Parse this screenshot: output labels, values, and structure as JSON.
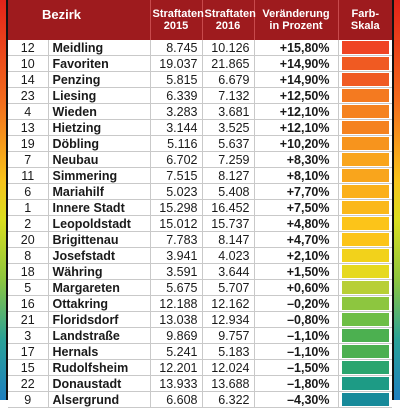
{
  "header": {
    "bezirk": "Bezirk",
    "straftaten_2015": "Straftaten 2015",
    "straftaten_2016": "Straftaten 2016",
    "veraenderung": "Veränderung in Prozent",
    "farbskala": "Farb-Skala"
  },
  "rows": [
    {
      "num": "12",
      "name": "Meidling",
      "v2015": "8.745",
      "v2016": "10.126",
      "chg": "+15,80%",
      "color": "#ef4423"
    },
    {
      "num": "10",
      "name": "Favoriten",
      "v2015": "19.037",
      "v2016": "21.865",
      "chg": "+14,90%",
      "color": "#f05a22"
    },
    {
      "num": "14",
      "name": "Penzing",
      "v2015": "5.815",
      "v2016": "6.679",
      "chg": "+14,90%",
      "color": "#f05a22"
    },
    {
      "num": "23",
      "name": "Liesing",
      "v2015": "6.339",
      "v2016": "7.132",
      "chg": "+12,50%",
      "color": "#f47a20"
    },
    {
      "num": "4",
      "name": "Wieden",
      "v2015": "3.283",
      "v2016": "3.681",
      "chg": "+12,10%",
      "color": "#f5821f"
    },
    {
      "num": "13",
      "name": "Hietzing",
      "v2015": "3.144",
      "v2016": "3.525",
      "chg": "+12,10%",
      "color": "#f5821f"
    },
    {
      "num": "19",
      "name": "Döbling",
      "v2015": "5.116",
      "v2016": "5.637",
      "chg": "+10,20%",
      "color": "#f7941d"
    },
    {
      "num": "7",
      "name": "Neubau",
      "v2015": "6.702",
      "v2016": "7.259",
      "chg": "+8,30%",
      "color": "#f9a51c"
    },
    {
      "num": "11",
      "name": "Simmering",
      "v2015": "7.515",
      "v2016": "8.127",
      "chg": "+8,10%",
      "color": "#f9a51c"
    },
    {
      "num": "6",
      "name": "Mariahilf",
      "v2015": "5.023",
      "v2016": "5.408",
      "chg": "+7,70%",
      "color": "#fbb01a"
    },
    {
      "num": "1",
      "name": "Innere Stadt",
      "v2015": "15.298",
      "v2016": "16.452",
      "chg": "+7,50%",
      "color": "#fbb81a"
    },
    {
      "num": "2",
      "name": "Leopoldstadt",
      "v2015": "15.012",
      "v2016": "15.737",
      "chg": "+4,80%",
      "color": "#fcc419"
    },
    {
      "num": "20",
      "name": "Brigittenau",
      "v2015": "7.783",
      "v2016": "8.147",
      "chg": "+4,70%",
      "color": "#fcc419"
    },
    {
      "num": "8",
      "name": "Josefstadt",
      "v2015": "3.941",
      "v2016": "4.023",
      "chg": "+2,10%",
      "color": "#f2d21b"
    },
    {
      "num": "18",
      "name": "Währing",
      "v2015": "3.591",
      "v2016": "3.644",
      "chg": "+1,50%",
      "color": "#e6d91f"
    },
    {
      "num": "5",
      "name": "Margareten",
      "v2015": "5.675",
      "v2016": "5.707",
      "chg": "+0,60%",
      "color": "#b8cf35"
    },
    {
      "num": "16",
      "name": "Ottakring",
      "v2015": "12.188",
      "v2016": "12.162",
      "chg": "–0,20%",
      "color": "#8dc63f"
    },
    {
      "num": "21",
      "name": "Floridsdorf",
      "v2015": "13.038",
      "v2016": "12.934",
      "chg": "–0,80%",
      "color": "#6dbe45"
    },
    {
      "num": "3",
      "name": "Landstraße",
      "v2015": "9.869",
      "v2016": "9.757",
      "chg": "–1,10%",
      "color": "#4cb050"
    },
    {
      "num": "17",
      "name": "Hernals",
      "v2015": "5.241",
      "v2016": "5.183",
      "chg": "–1,10%",
      "color": "#4cb050"
    },
    {
      "num": "15",
      "name": "Rudolfsheim",
      "v2015": "12.201",
      "v2016": "12.024",
      "chg": "–1,50%",
      "color": "#2aa56e"
    },
    {
      "num": "22",
      "name": "Donaustadt",
      "v2015": "13.933",
      "v2016": "13.688",
      "chg": "–1,80%",
      "color": "#1d9b85"
    },
    {
      "num": "9",
      "name": "Alsergrund",
      "v2015": "6.608",
      "v2016": "6.322",
      "chg": "–4,30%",
      "color": "#178a9a"
    }
  ]
}
